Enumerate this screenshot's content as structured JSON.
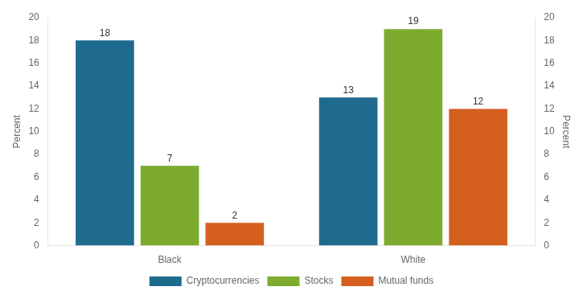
{
  "chart_data": {
    "type": "bar",
    "categories": [
      "Black",
      "White"
    ],
    "series": [
      {
        "name": "Cryptocurrencies",
        "color": "#1f6b8e",
        "values": [
          18,
          13
        ]
      },
      {
        "name": "Stocks",
        "color": "#7dab2f",
        "values": [
          7,
          19
        ]
      },
      {
        "name": "Mutual funds",
        "color": "#d45f1e",
        "values": [
          2,
          12
        ]
      }
    ],
    "ylabel": "Percent",
    "ylim": [
      0,
      20
    ],
    "yticks": [
      0,
      2,
      4,
      6,
      8,
      10,
      12,
      14,
      16,
      18,
      20
    ],
    "y2label": "Percent",
    "y2lim": [
      0,
      20
    ],
    "y2ticks": [
      0,
      2,
      4,
      6,
      8,
      10,
      12,
      14,
      16,
      18,
      20
    ],
    "data_labels": true,
    "legend": "bottom",
    "grid": false
  }
}
